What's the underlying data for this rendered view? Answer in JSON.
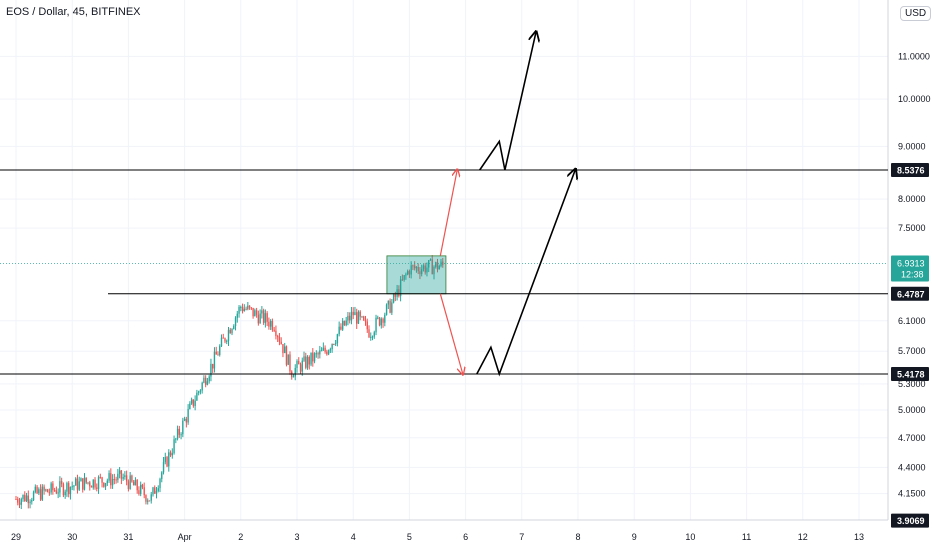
{
  "header": {
    "title": "EOS / Dollar, 45, BITFINEX",
    "currency": "USD"
  },
  "colors": {
    "up": "#26a69a",
    "down": "#ef5350",
    "grid": "#f0f3fa",
    "axis_text": "#131722",
    "price_tag_bg": "#131722",
    "current_tag_bg": "#26a69a",
    "zone_fill": "#26a69a",
    "arrow_red": "#ef5350",
    "arrow_black": "#000000"
  },
  "chart_data": {
    "type": "candlestick",
    "title": "EOS / Dollar, 45, BITFINEX",
    "x_tick_labels": [
      "29",
      "30",
      "31",
      "Apr",
      "2",
      "3",
      "4",
      "5",
      "6",
      "7",
      "8",
      "9",
      "10",
      "11",
      "12",
      "13"
    ],
    "y_tick_labels": [
      "11.0000",
      "10.0000",
      "9.0000",
      "8.0000",
      "7.5000",
      "6.1000",
      "5.7000",
      "5.3000",
      "5.0000",
      "4.7000",
      "4.4000",
      "4.1500"
    ],
    "y_scale": "log",
    "ylim": [
      3.9069,
      12.5
    ],
    "grid": true,
    "horizontal_levels": [
      8.5376,
      6.4787,
      5.4178,
      3.9069
    ],
    "current_price": 6.9313,
    "countdown": "12:38",
    "trend_waypoints": [
      {
        "day": 29.0,
        "price": 4.1
      },
      {
        "day": 30.2,
        "price": 4.25
      },
      {
        "day": 30.9,
        "price": 4.3
      },
      {
        "day": 31.4,
        "price": 4.1
      },
      {
        "day": 31.9,
        "price": 4.75
      },
      {
        "day": 32.5,
        "price": 5.55
      },
      {
        "day": 33.0,
        "price": 6.3
      },
      {
        "day": 33.6,
        "price": 6.05
      },
      {
        "day": 33.9,
        "price": 5.45
      },
      {
        "day": 34.5,
        "price": 5.7
      },
      {
        "day": 35.0,
        "price": 6.2
      },
      {
        "day": 35.3,
        "price": 5.95
      },
      {
        "day": 35.7,
        "price": 6.35
      },
      {
        "day": 36.0,
        "price": 6.85
      },
      {
        "day": 36.6,
        "price": 6.9
      }
    ],
    "consolidation_box": {
      "day_start": 35.6,
      "day_end": 36.65,
      "price_low": 6.4787,
      "price_high": 7.05
    },
    "projections": [
      {
        "color": "red",
        "points": [
          {
            "day": 36.55,
            "price": 7.05
          },
          {
            "day": 36.85,
            "price": 8.5376
          }
        ]
      },
      {
        "color": "red",
        "points": [
          {
            "day": 36.55,
            "price": 6.4787
          },
          {
            "day": 36.95,
            "price": 5.4178
          }
        ]
      },
      {
        "color": "black",
        "points": [
          {
            "day": 37.2,
            "price": 5.4178
          },
          {
            "day": 37.45,
            "price": 5.75
          },
          {
            "day": 37.6,
            "price": 5.4178
          },
          {
            "day": 38.95,
            "price": 8.5376
          }
        ]
      },
      {
        "color": "black",
        "points": [
          {
            "day": 37.25,
            "price": 8.5376
          },
          {
            "day": 37.6,
            "price": 9.1
          },
          {
            "day": 37.7,
            "price": 8.5376
          },
          {
            "day": 38.25,
            "price": 11.6
          }
        ]
      }
    ]
  }
}
